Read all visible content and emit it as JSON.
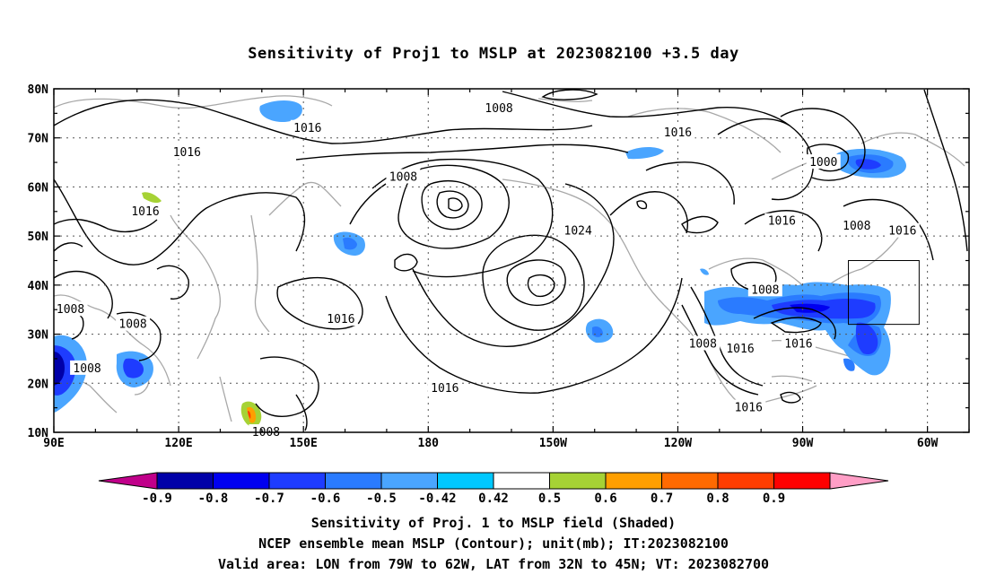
{
  "title": "Sensitivity of Proj1 to MSLP at 2023082100 +3.5 day",
  "footer": {
    "line1": "Sensitivity of Proj. 1 to MSLP field (Shaded)",
    "line2": "NCEP ensemble mean MSLP (Contour); unit(mb); IT:2023082100",
    "line3": "Valid area: LON from 79W to 62W, LAT from 32N to 45N; VT: 2023082700"
  },
  "axes": {
    "lat_labels": [
      "80N",
      "70N",
      "60N",
      "50N",
      "40N",
      "30N",
      "20N",
      "10N"
    ],
    "lon_labels": [
      "90E",
      "120E",
      "150E",
      "180",
      "150W",
      "120W",
      "90W",
      "60W"
    ],
    "lat_range": [
      10,
      80
    ],
    "lon_range_east": [
      90,
      310
    ],
    "grid": "dotted"
  },
  "colorbar": {
    "labels": [
      "-0.9",
      "-0.8",
      "-0.7",
      "-0.6",
      "-0.5",
      "-0.42",
      "0.42",
      "0.5",
      "0.6",
      "0.7",
      "0.8",
      "0.9"
    ],
    "colors": [
      "#c0008a",
      "#0000a8",
      "#0000f0",
      "#1e3cff",
      "#2a7bff",
      "#4aa5ff",
      "#00c8ff",
      "#ffffff",
      "#a6d235",
      "#ff9f00",
      "#ff6a00",
      "#ff3d00",
      "#ff0000",
      "#ff9ec6"
    ]
  },
  "contour_labels": [
    {
      "text": "1016",
      "lon": 151,
      "lat": 72
    },
    {
      "text": "1016",
      "lon": 122,
      "lat": 67
    },
    {
      "text": "1008",
      "lon": 197,
      "lat": 76
    },
    {
      "text": "1016",
      "lon": 240,
      "lat": 71
    },
    {
      "text": "1008",
      "lon": 174,
      "lat": 62
    },
    {
      "text": "1000",
      "lon": 275,
      "lat": 65
    },
    {
      "text": "1016",
      "lon": 112,
      "lat": 55
    },
    {
      "text": "1024",
      "lon": 216,
      "lat": 51
    },
    {
      "text": "1016",
      "lon": 265,
      "lat": 53
    },
    {
      "text": "1008",
      "lon": 283,
      "lat": 52
    },
    {
      "text": "1016",
      "lon": 294,
      "lat": 51
    },
    {
      "text": "1008",
      "lon": 261,
      "lat": 39
    },
    {
      "text": "1008",
      "lon": 94,
      "lat": 35
    },
    {
      "text": "1016",
      "lon": 159,
      "lat": 33
    },
    {
      "text": "1008",
      "lon": 109,
      "lat": 32
    },
    {
      "text": "1016",
      "lon": 269,
      "lat": 28
    },
    {
      "text": "1008",
      "lon": 246,
      "lat": 28
    },
    {
      "text": "1016",
      "lon": 255,
      "lat": 27
    },
    {
      "text": "1008",
      "lon": 98,
      "lat": 23
    },
    {
      "text": "1016",
      "lon": 184,
      "lat": 19
    },
    {
      "text": "1016",
      "lon": 257,
      "lat": 15
    },
    {
      "text": "1008",
      "lon": 141,
      "lat": 10
    }
  ],
  "valid_area": {
    "lon_w": 281,
    "lon_e": 298,
    "lat_s": 32,
    "lat_n": 45
  }
}
